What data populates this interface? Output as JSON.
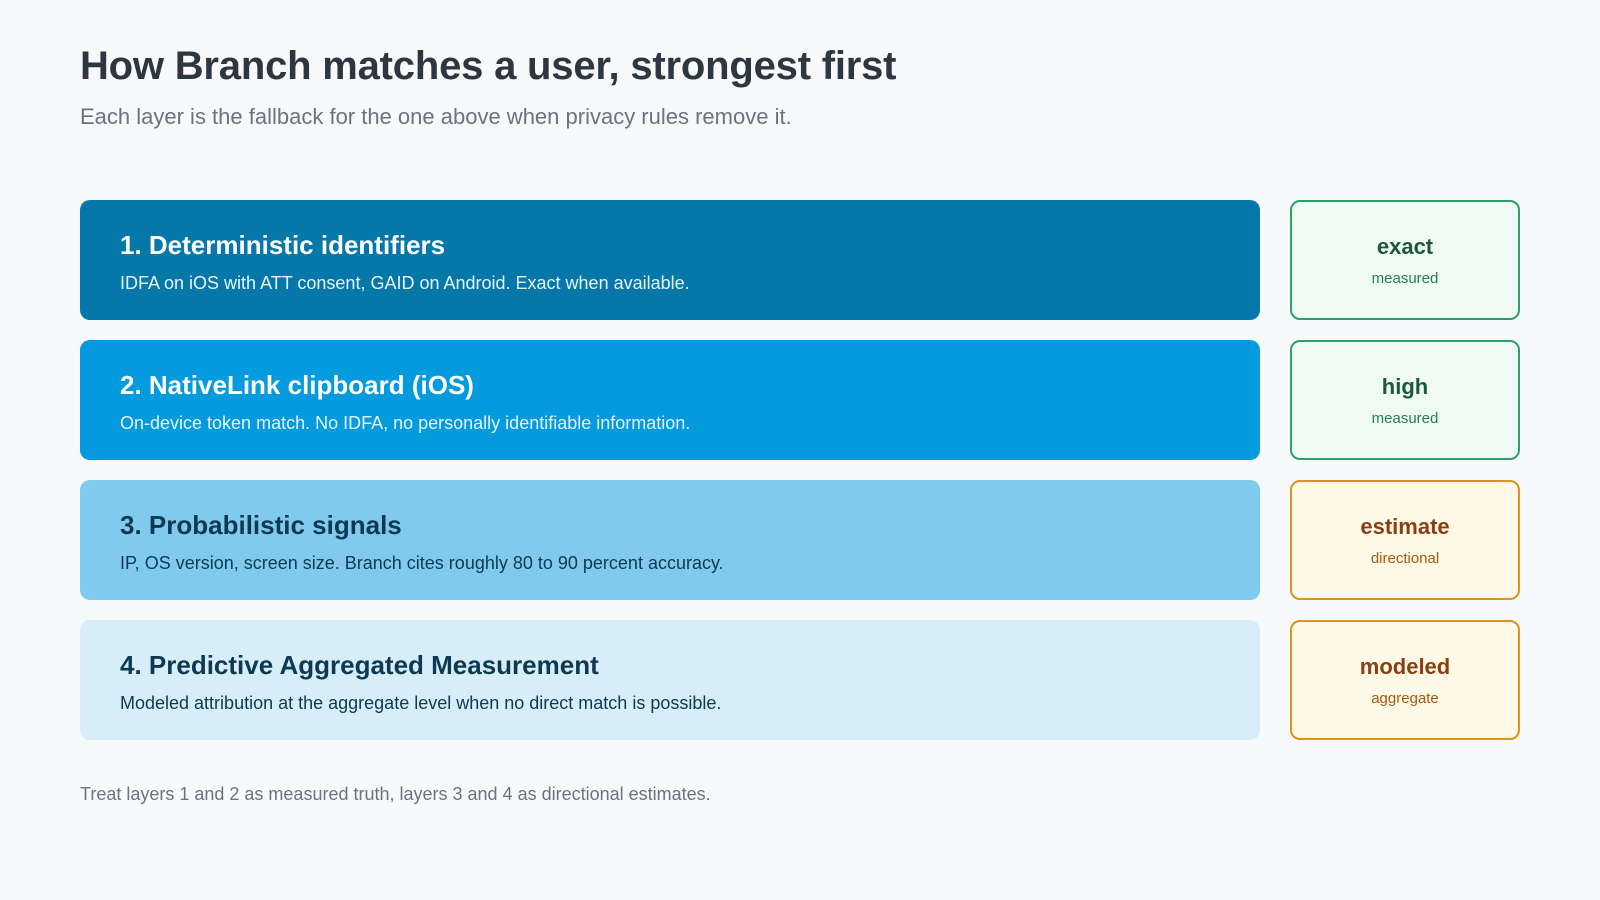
{
  "header": {
    "title": "How Branch matches a user, strongest first",
    "subtitle": "Each layer is the fallback for the one above when privacy rules remove it."
  },
  "layers": [
    {
      "title": "1. Deterministic identifiers",
      "description": "IDFA on iOS with ATT consent, GAID on Android. Exact when available.",
      "color": "#0577a8",
      "badge": {
        "label": "exact",
        "sublabel": "measured",
        "tone": "green"
      }
    },
    {
      "title": "2. NativeLink clipboard (iOS)",
      "description": "On-device token match. No IDFA, no personally identifiable information.",
      "color": "#039ade",
      "badge": {
        "label": "high",
        "sublabel": "measured",
        "tone": "green"
      }
    },
    {
      "title": "3. Probabilistic signals",
      "description": "IP, OS version, screen size. Branch cites roughly 80 to 90 percent accuracy.",
      "color": "#7fcaed",
      "badge": {
        "label": "estimate",
        "sublabel": "directional",
        "tone": "amber"
      }
    },
    {
      "title": "4. Predictive Aggregated Measurement",
      "description": "Modeled attribution at the aggregate level when no direct match is possible.",
      "color": "#d7edf8",
      "badge": {
        "label": "modeled",
        "sublabel": "aggregate",
        "tone": "amber"
      }
    }
  ],
  "footnote": "Treat layers 1 and 2 as measured truth, layers 3 and 4 as directional estimates.",
  "colors": {
    "background": "#f8f9fa",
    "green_border": "#2da066",
    "amber_border": "#dc9322"
  }
}
